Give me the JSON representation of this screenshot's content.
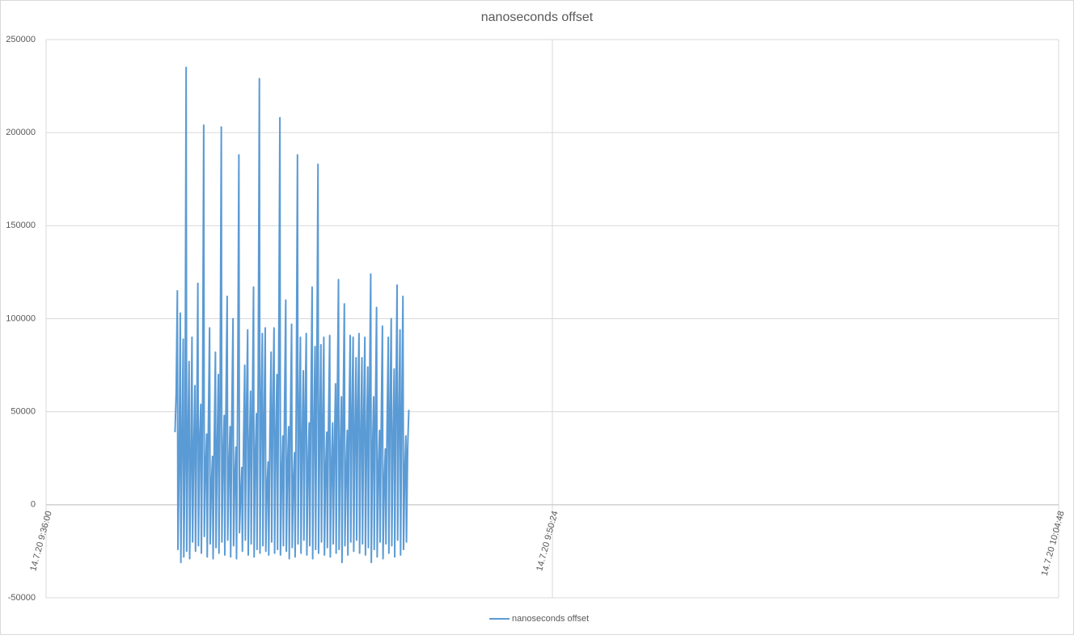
{
  "chart_data": {
    "type": "line",
    "title": "nanoseconds offset",
    "x": [
      "14.7.20 9:39:40",
      "14.7.20 9:39:42",
      "14.7.20 9:39:44",
      "14.7.20 9:39:45",
      "14.7.20 9:39:47",
      "14.7.20 9:39:49",
      "14.7.20 9:39:50",
      "14.7.20 9:39:52",
      "14.7.20 9:39:54",
      "14.7.20 9:39:55",
      "14.7.20 9:39:57",
      "14.7.20 9:39:59",
      "14.7.20 9:40:00",
      "14.7.20 9:40:02",
      "14.7.20 9:40:04",
      "14.7.20 9:40:05",
      "14.7.20 9:40:07",
      "14.7.20 9:40:09",
      "14.7.20 9:40:10",
      "14.7.20 9:40:12",
      "14.7.20 9:40:14",
      "14.7.20 9:40:15",
      "14.7.20 9:40:17",
      "14.7.20 9:40:19",
      "14.7.20 9:40:20",
      "14.7.20 9:40:22",
      "14.7.20 9:40:24",
      "14.7.20 9:40:25",
      "14.7.20 9:40:27",
      "14.7.20 9:40:29",
      "14.7.20 9:40:30",
      "14.7.20 9:40:32",
      "14.7.20 9:40:34",
      "14.7.20 9:40:35",
      "14.7.20 9:40:37",
      "14.7.20 9:40:39",
      "14.7.20 9:40:40",
      "14.7.20 9:40:42",
      "14.7.20 9:40:44",
      "14.7.20 9:40:45",
      "14.7.20 9:40:47",
      "14.7.20 9:40:49",
      "14.7.20 9:40:50",
      "14.7.20 9:40:52",
      "14.7.20 9:40:54",
      "14.7.20 9:40:55",
      "14.7.20 9:40:57",
      "14.7.20 9:40:59",
      "14.7.20 9:41:00",
      "14.7.20 9:41:02",
      "14.7.20 9:41:04",
      "14.7.20 9:41:05",
      "14.7.20 9:41:07",
      "14.7.20 9:41:09",
      "14.7.20 9:41:10",
      "14.7.20 9:41:12",
      "14.7.20 9:41:14",
      "14.7.20 9:41:15",
      "14.7.20 9:41:17",
      "14.7.20 9:41:19",
      "14.7.20 9:41:20",
      "14.7.20 9:41:22",
      "14.7.20 9:41:24",
      "14.7.20 9:41:25",
      "14.7.20 9:41:27",
      "14.7.20 9:41:29",
      "14.7.20 9:41:30",
      "14.7.20 9:41:32",
      "14.7.20 9:41:34",
      "14.7.20 9:41:35",
      "14.7.20 9:41:37",
      "14.7.20 9:41:39",
      "14.7.20 9:41:40",
      "14.7.20 9:41:42",
      "14.7.20 9:41:44",
      "14.7.20 9:41:45",
      "14.7.20 9:41:47",
      "14.7.20 9:41:49",
      "14.7.20 9:41:50",
      "14.7.20 9:41:52",
      "14.7.20 9:41:54",
      "14.7.20 9:41:55",
      "14.7.20 9:41:57",
      "14.7.20 9:41:59",
      "14.7.20 9:42:00",
      "14.7.20 9:42:02",
      "14.7.20 9:42:04",
      "14.7.20 9:42:05",
      "14.7.20 9:42:07",
      "14.7.20 9:42:09",
      "14.7.20 9:42:10",
      "14.7.20 9:42:12",
      "14.7.20 9:42:14",
      "14.7.20 9:42:15",
      "14.7.20 9:42:17",
      "14.7.20 9:42:19",
      "14.7.20 9:42:20",
      "14.7.20 9:42:22",
      "14.7.20 9:42:24",
      "14.7.20 9:42:25",
      "14.7.20 9:42:27",
      "14.7.20 9:42:29",
      "14.7.20 9:42:30",
      "14.7.20 9:42:32",
      "14.7.20 9:42:34",
      "14.7.20 9:42:35",
      "14.7.20 9:42:37",
      "14.7.20 9:42:39",
      "14.7.20 9:42:40",
      "14.7.20 9:42:42",
      "14.7.20 9:42:44",
      "14.7.20 9:42:45",
      "14.7.20 9:42:47",
      "14.7.20 9:42:49",
      "14.7.20 9:42:50",
      "14.7.20 9:42:52",
      "14.7.20 9:42:54",
      "14.7.20 9:42:55",
      "14.7.20 9:42:57",
      "14.7.20 9:42:59",
      "14.7.20 9:43:00",
      "14.7.20 9:43:02",
      "14.7.20 9:43:04",
      "14.7.20 9:43:05",
      "14.7.20 9:43:07",
      "14.7.20 9:43:09",
      "14.7.20 9:43:10",
      "14.7.20 9:43:12",
      "14.7.20 9:43:14",
      "14.7.20 9:43:15",
      "14.7.20 9:43:17",
      "14.7.20 9:43:19",
      "14.7.20 9:43:20",
      "14.7.20 9:43:22",
      "14.7.20 9:43:24",
      "14.7.20 9:43:25",
      "14.7.20 9:43:27",
      "14.7.20 9:43:29",
      "14.7.20 9:43:30",
      "14.7.20 9:43:32",
      "14.7.20 9:43:34",
      "14.7.20 9:43:35",
      "14.7.20 9:43:37",
      "14.7.20 9:43:39",
      "14.7.20 9:43:40",
      "14.7.20 9:43:42",
      "14.7.20 9:43:44",
      "14.7.20 9:43:45",
      "14.7.20 9:43:47",
      "14.7.20 9:43:49",
      "14.7.20 9:43:50",
      "14.7.20 9:43:52",
      "14.7.20 9:43:54",
      "14.7.20 9:43:55",
      "14.7.20 9:43:57",
      "14.7.20 9:43:59",
      "14.7.20 9:44:00",
      "14.7.20 9:44:02",
      "14.7.20 9:44:04",
      "14.7.20 9:44:05",
      "14.7.20 9:44:07",
      "14.7.20 9:44:09",
      "14.7.20 9:44:10",
      "14.7.20 9:44:12",
      "14.7.20 9:44:14",
      "14.7.20 9:44:15",
      "14.7.20 9:44:17",
      "14.7.20 9:44:19",
      "14.7.20 9:44:20",
      "14.7.20 9:44:22",
      "14.7.20 9:44:24",
      "14.7.20 9:44:25",
      "14.7.20 9:44:27",
      "14.7.20 9:44:29",
      "14.7.20 9:44:30",
      "14.7.20 9:44:32",
      "14.7.20 9:44:34",
      "14.7.20 9:44:35",
      "14.7.20 9:44:37",
      "14.7.20 9:44:39",
      "14.7.20 9:44:40",
      "14.7.20 9:44:42",
      "14.7.20 9:44:44",
      "14.7.20 9:44:45",
      "14.7.20 9:44:47",
      "14.7.20 9:44:49",
      "14.7.20 9:44:50",
      "14.7.20 9:44:52",
      "14.7.20 9:44:54",
      "14.7.20 9:44:55",
      "14.7.20 9:44:57",
      "14.7.20 9:44:59",
      "14.7.20 9:45:00",
      "14.7.20 9:45:02",
      "14.7.20 9:45:04",
      "14.7.20 9:45:05",
      "14.7.20 9:45:07",
      "14.7.20 9:45:09",
      "14.7.20 9:45:10",
      "14.7.20 9:45:12",
      "14.7.20 9:45:14",
      "14.7.20 9:45:15",
      "14.7.20 9:45:17",
      "14.7.20 9:45:19",
      "14.7.20 9:45:20",
      "14.7.20 9:45:22",
      "14.7.20 9:45:24",
      "14.7.20 9:45:25",
      "14.7.20 9:45:27",
      "14.7.20 9:45:29",
      "14.7.20 9:45:30",
      "14.7.20 9:45:32",
      "14.7.20 9:45:34",
      "14.7.20 9:45:35",
      "14.7.20 9:45:37",
      "14.7.20 9:45:39",
      "14.7.20 9:45:40",
      "14.7.20 9:45:42",
      "14.7.20 9:45:44",
      "14.7.20 9:45:45",
      "14.7.20 9:45:47",
      "14.7.20 9:45:49",
      "14.7.20 9:45:50",
      "14.7.20 9:45:52",
      "14.7.20 9:45:54",
      "14.7.20 9:45:55",
      "14.7.20 9:45:57",
      "14.7.20 9:45:59",
      "14.7.20 9:46:00",
      "14.7.20 9:46:02",
      "14.7.20 9:46:04",
      "14.7.20 9:46:05",
      "14.7.20 9:46:07",
      "14.7.20 9:46:09",
      "14.7.20 9:46:10",
      "14.7.20 9:46:12",
      "14.7.20 9:46:14",
      "14.7.20 9:46:15",
      "14.7.20 9:46:17",
      "14.7.20 9:46:19"
    ],
    "series": [
      {
        "name": "nanoseconds offset",
        "color": "#5b9bd5",
        "values": [
          39000,
          60000,
          115000,
          -24000,
          20000,
          103000,
          -31000,
          35000,
          89000,
          -28000,
          20000,
          235000,
          -25000,
          35000,
          77000,
          -29000,
          22000,
          90000,
          -20000,
          30000,
          64000,
          -25000,
          40000,
          119000,
          -22000,
          35000,
          54000,
          -26000,
          50000,
          204000,
          -17000,
          20000,
          38000,
          -28000,
          45000,
          95000,
          -21000,
          10000,
          26000,
          -29000,
          35000,
          82000,
          -23000,
          30000,
          70000,
          -26000,
          60000,
          203000,
          -20000,
          25000,
          48000,
          -27000,
          55000,
          112000,
          -19000,
          20000,
          42000,
          -28000,
          50000,
          100000,
          -22000,
          15000,
          31000,
          -29000,
          60000,
          188000,
          -15000,
          5000,
          20000,
          -25000,
          35000,
          75000,
          -19000,
          50000,
          94000,
          -27000,
          30000,
          61000,
          -21000,
          50000,
          117000,
          -28000,
          25000,
          49000,
          -24000,
          70000,
          229000,
          -26000,
          50000,
          92000,
          -22000,
          45000,
          95000,
          -25000,
          10000,
          23000,
          -27000,
          40000,
          82000,
          -20000,
          50000,
          95000,
          -26000,
          35000,
          70000,
          -24000,
          80000,
          208000,
          -27000,
          15000,
          37000,
          -22000,
          55000,
          110000,
          -25000,
          20000,
          42000,
          -29000,
          45000,
          97000,
          -23000,
          12000,
          28000,
          -28000,
          60000,
          188000,
          -21000,
          45000,
          90000,
          -26000,
          35000,
          72000,
          -19000,
          50000,
          92000,
          -27000,
          20000,
          44000,
          -22000,
          55000,
          117000,
          -29000,
          40000,
          85000,
          -24000,
          70000,
          183000,
          -26000,
          40000,
          86000,
          -20000,
          45000,
          90000,
          -27000,
          18000,
          39000,
          -23000,
          45000,
          91000,
          -28000,
          20000,
          44000,
          -21000,
          30000,
          65000,
          -26000,
          55000,
          121000,
          -24000,
          28000,
          58000,
          -31000,
          50000,
          108000,
          -22000,
          18000,
          40000,
          -27000,
          45000,
          91000,
          -20000,
          48000,
          90000,
          -25000,
          38000,
          79000,
          -19000,
          50000,
          92000,
          -26000,
          36000,
          79000,
          -21000,
          45000,
          90000,
          -27000,
          35000,
          74000,
          -23000,
          60000,
          124000,
          -31000,
          28000,
          58000,
          -24000,
          50000,
          106000,
          -28000,
          18000,
          40000,
          -20000,
          45000,
          96000,
          -29000,
          12000,
          30000,
          -21000,
          45000,
          90000,
          -26000,
          50000,
          100000,
          -22000,
          35000,
          73000,
          -28000,
          55000,
          118000,
          -19000,
          45000,
          94000,
          -27000,
          50000,
          112000,
          -24000,
          17000,
          37000,
          -20000,
          30000,
          51000
        ]
      }
    ],
    "xlim": [
      "14.7.20 9:36:00",
      "14.7.20 10:04:48"
    ],
    "xticks": [
      "14.7.20 9:36:00",
      "14.7.20 9:50:24",
      "14.7.20 10:04:48"
    ],
    "ylim": [
      -50000,
      250000
    ],
    "yticks": [
      -50000,
      0,
      50000,
      100000,
      150000,
      200000,
      250000
    ],
    "grid": true,
    "legend": "bottom"
  }
}
